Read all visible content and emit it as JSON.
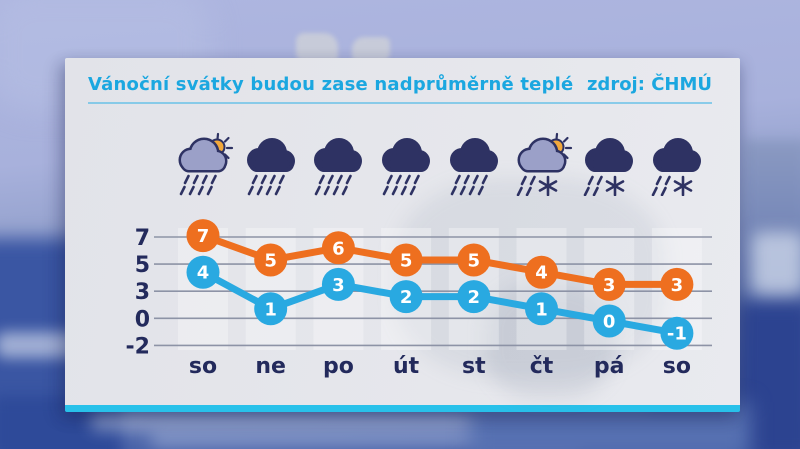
{
  "header": {
    "title": "Vánoční svátky budou zase nadprůměrně teplé",
    "source": "zdroj: ČHMÚ"
  },
  "icons": [
    {
      "name": "sun-cloud-rain-icon",
      "type": "sun-cloud-rain"
    },
    {
      "name": "cloud-rain-icon",
      "type": "cloud-rain"
    },
    {
      "name": "cloud-rain-icon",
      "type": "cloud-rain"
    },
    {
      "name": "cloud-rain-icon",
      "type": "cloud-rain"
    },
    {
      "name": "cloud-rain-icon",
      "type": "cloud-rain"
    },
    {
      "name": "sun-cloud-rain-snow-icon",
      "type": "sun-cloud-rain-snow"
    },
    {
      "name": "cloud-rain-snow-icon",
      "type": "cloud-rain-snow"
    },
    {
      "name": "cloud-rain-snow-icon",
      "type": "cloud-rain-snow"
    }
  ],
  "chart_data": {
    "type": "line",
    "title": "Vánoční svátky budou zase nadprůměrně teplé",
    "categories": [
      "so",
      "ne",
      "po",
      "út",
      "st",
      "čt",
      "pá",
      "so"
    ],
    "series": [
      {
        "id": "upper",
        "color": "#ee6f1f",
        "values": [
          7,
          5,
          6,
          5,
          5,
          4,
          3,
          3
        ]
      },
      {
        "id": "lower",
        "color": "#29a9e1",
        "values": [
          4,
          1,
          3,
          2,
          2,
          1,
          0,
          -1
        ]
      }
    ],
    "ytick_labels": [
      "7",
      "5",
      "3",
      "0",
      "-2"
    ],
    "ylim": [
      -2,
      7
    ],
    "grid": true,
    "legend": "none",
    "xlabel": "",
    "ylabel": ""
  },
  "colors": {
    "accent_cyan": "#1ba7e0",
    "underline_cyan": "#56bce6",
    "navy": "#232a5c",
    "gridline": "#8d93a6",
    "card_strip": "#28c1ea",
    "orange": "#ee6f1f",
    "blue": "#29a9e1",
    "cloud_dark": "#2e3263",
    "cloud_light": "#9ba0c8",
    "sun": "#f2a83b",
    "value_text": "#ffffff"
  }
}
